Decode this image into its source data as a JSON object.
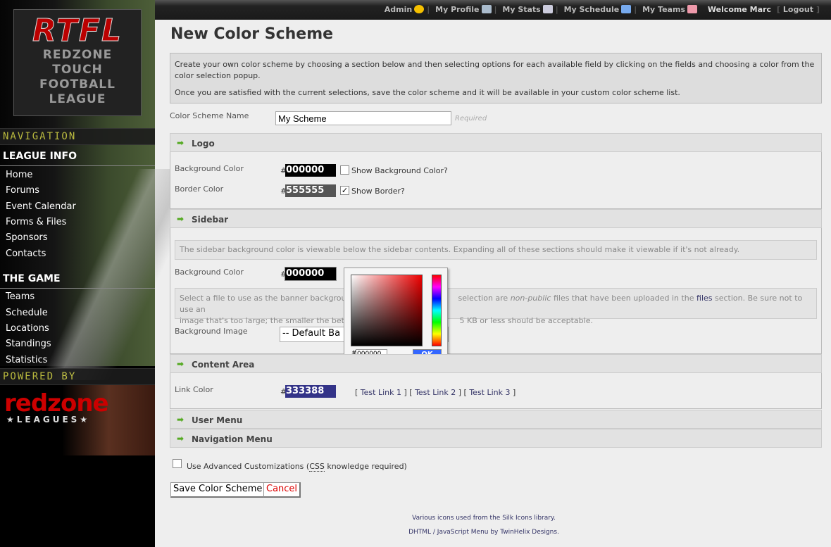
{
  "topbar": {
    "links": [
      {
        "label": "Admin",
        "icon": "star-icon",
        "color": "#f5c000"
      },
      {
        "label": "My Profile",
        "icon": "id-card-icon",
        "color": "#8ab"
      },
      {
        "label": "My Stats",
        "icon": "calculator-icon",
        "color": "#ccd"
      },
      {
        "label": "My Schedule",
        "icon": "calendar-icon",
        "color": "#7ae"
      },
      {
        "label": "My Teams",
        "icon": "users-icon",
        "color": "#e9a"
      }
    ],
    "welcome": "Welcome Marc",
    "logout": "Logout"
  },
  "sidebar": {
    "logo": {
      "abbr": "RTFL",
      "lines": [
        "REDZONE",
        "TOUCH",
        "FOOTBALL",
        "LEAGUE"
      ]
    },
    "navigation_label": "NAVIGATION",
    "sections": [
      {
        "title": "LEAGUE INFO",
        "items": [
          "Home",
          "Forums",
          "Event Calendar",
          "Forms & Files",
          "Sponsors",
          "Contacts"
        ]
      },
      {
        "title": "THE GAME",
        "items": [
          "Teams",
          "Schedule",
          "Locations",
          "Standings",
          "Statistics"
        ]
      }
    ],
    "powered_by": "POWERED BY",
    "brand": {
      "name": "redzone",
      "tag": "★LEAGUES★"
    }
  },
  "page": {
    "title": "New Color Scheme",
    "intro": [
      "Create your own color scheme by choosing a section below and then selecting options for each available field by clicking on the fields and choosing a color from the color selection popup.",
      "Once you are satisfied with the current selections, save the color scheme and it will be available in your custom color scheme list."
    ],
    "name_label": "Color Scheme Name",
    "name_value": "My Scheme",
    "required": "Required"
  },
  "sections": {
    "logo": {
      "title": "Logo",
      "bg_label": "Background Color",
      "bg_value": "000000",
      "bg_color": "#000000",
      "show_bg": "Show Background Color?",
      "show_bg_checked": false,
      "border_label": "Border Color",
      "border_value": "555555",
      "border_color": "#555555",
      "show_border": "Show Border?",
      "show_border_checked": true
    },
    "sidebar": {
      "title": "Sidebar",
      "note": "The sidebar background color is viewable below the sidebar contents. Expanding all of these sections should make it viewable if it's not already.",
      "bg_label": "Background Color",
      "bg_value": "000000",
      "bg_color": "#000000",
      "file_note_a": "Select a file to use as the banner background",
      "file_note_b": "selection are",
      "file_note_em": "non-public",
      "file_note_c": "files that have been uploaded in the",
      "files_link": "files",
      "file_note_d": "section. Be sure not to use an",
      "file_note_e": "image that's too large; the smaller the better",
      "file_note_f": "5 KB or less should be acceptable.",
      "image_label": "Background Image",
      "image_value": "-- Default Ba"
    },
    "content": {
      "title": "Content Area",
      "link_label": "Link Color",
      "link_value": "333388",
      "link_color": "#333388",
      "test_links": [
        "Test Link 1",
        "Test Link 2",
        "Test Link 3"
      ]
    },
    "user_menu": {
      "title": "User Menu"
    },
    "nav_menu": {
      "title": "Navigation Menu"
    }
  },
  "picker": {
    "hash": "#",
    "value": "000000",
    "ok": "OK"
  },
  "advanced": {
    "label_a": "Use Advanced Customizations (",
    "abbr": "CSS",
    "label_b": " knowledge required)",
    "checked": false
  },
  "buttons": {
    "save": "Save Color Scheme",
    "cancel": "Cancel"
  },
  "footer": [
    "Various icons used from the Silk Icons library.",
    "DHTML / JavaScript Menu by TwinHelix Designs."
  ]
}
